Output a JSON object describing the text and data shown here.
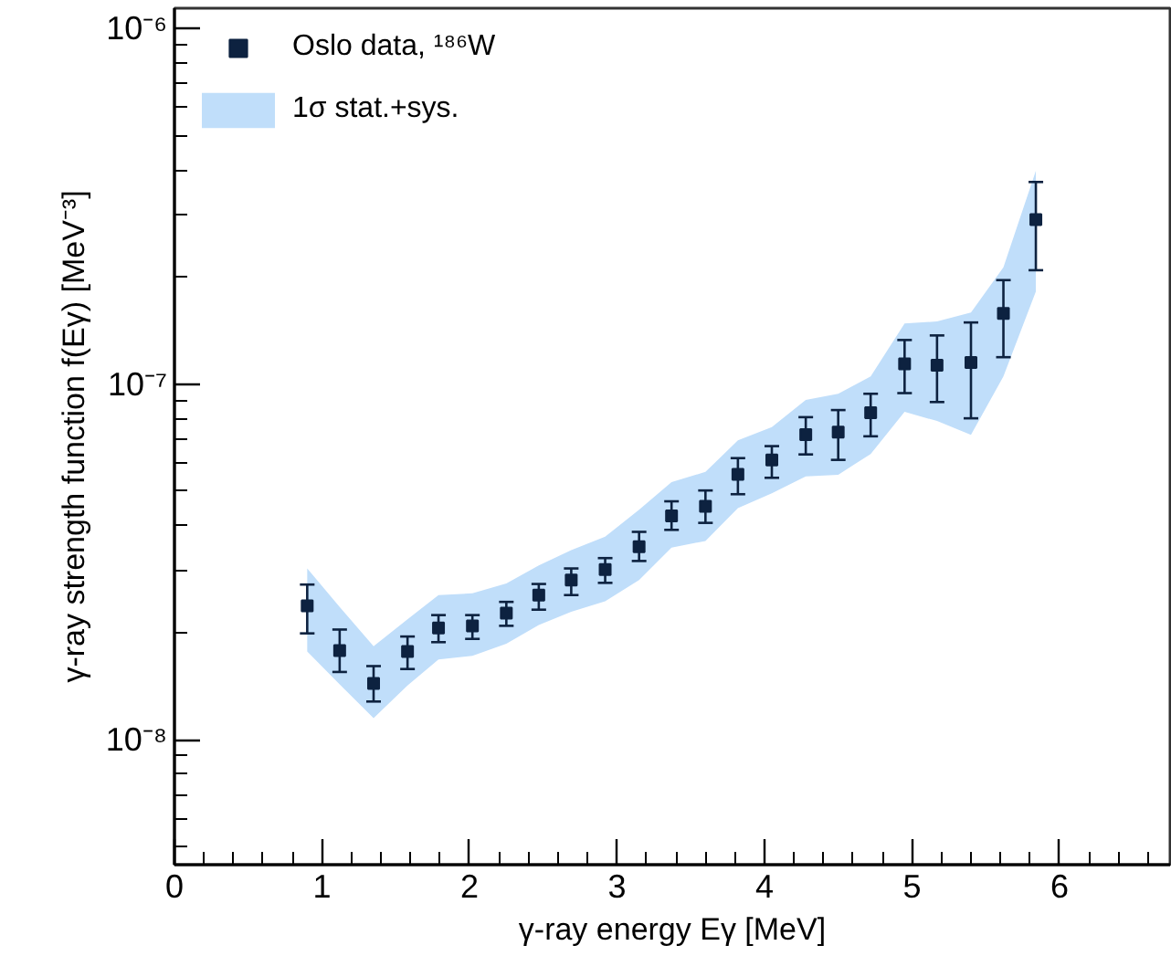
{
  "chart_data": {
    "type": "scatter",
    "xlabel": "γ-ray energy Eγ [MeV]",
    "ylabel": "γ-ray strength function f(Eγ) [MeV⁻³]",
    "log": "y",
    "xlim": [
      0,
      6.75
    ],
    "ylim": [
      4.45e-09,
      1.14e-06
    ],
    "xticks": [
      0,
      1,
      2,
      3,
      4,
      5,
      6
    ],
    "yticks": [
      {
        "value": 1e-08,
        "label": "10⁻⁸"
      },
      {
        "value": 1e-07,
        "label": "10⁻⁷"
      },
      {
        "value": 1e-06,
        "label": "10⁻⁶"
      }
    ],
    "grid": false,
    "legend": "top left",
    "marker": "square",
    "x": [
      0.9,
      1.12,
      1.35,
      1.58,
      1.79,
      2.02,
      2.25,
      2.47,
      2.69,
      2.92,
      3.15,
      3.37,
      3.6,
      3.82,
      4.05,
      4.28,
      4.5,
      4.72,
      4.95,
      5.17,
      5.4,
      5.62,
      5.84
    ],
    "series": [
      {
        "name": "1σ stat.+sys.",
        "type": "line",
        "color": "#c0defa",
        "marker": "none",
        "values": [
          null,
          null,
          null,
          null,
          null,
          null,
          null,
          null,
          null,
          null,
          null,
          null,
          null,
          null,
          null,
          null,
          null,
          null,
          null,
          null,
          null,
          null,
          null
        ],
        "lower": [
          1.77e-08,
          1.43e-08,
          1.15e-08,
          1.42e-08,
          1.68e-08,
          1.72e-08,
          1.86e-08,
          2.1e-08,
          2.29e-08,
          2.45e-08,
          2.81e-08,
          3.47e-08,
          3.62e-08,
          4.48e-08,
          4.93e-08,
          5.5e-08,
          5.56e-08,
          6.36e-08,
          8.35e-08,
          7.87e-08,
          7.2e-08,
          1.05e-07,
          1.82e-07
        ],
        "upper": [
          3.03e-08,
          2.36e-08,
          1.83e-08,
          2.18e-08,
          2.55e-08,
          2.58e-08,
          2.75e-08,
          3.09e-08,
          3.41e-08,
          3.72e-08,
          4.43e-08,
          5.3e-08,
          5.66e-08,
          6.95e-08,
          7.57e-08,
          9.02e-08,
          9.39e-08,
          1.05e-07,
          1.48e-07,
          1.5e-07,
          1.59e-07,
          2.13e-07,
          3.98e-07
        ]
      },
      {
        "name": "Oslo data, ¹⁸⁶W",
        "color": "#0d2240",
        "values": [
          2.38e-08,
          1.78e-08,
          1.44e-08,
          1.77e-08,
          2.06e-08,
          2.09e-08,
          2.27e-08,
          2.55e-08,
          2.81e-08,
          3.01e-08,
          3.49e-08,
          4.26e-08,
          4.53e-08,
          5.57e-08,
          6.12e-08,
          7.21e-08,
          7.32e-08,
          8.3e-08,
          1.14e-07,
          1.13e-07,
          1.15e-07,
          1.58e-07,
          2.9e-07
        ],
        "errors": [
          [
            1.99e-08,
            2.73e-08
          ],
          [
            1.55e-08,
            2.04e-08
          ],
          [
            1.28e-08,
            1.61e-08
          ],
          [
            1.58e-08,
            1.95e-08
          ],
          [
            1.88e-08,
            2.24e-08
          ],
          [
            1.92e-08,
            2.24e-08
          ],
          [
            2.09e-08,
            2.44e-08
          ],
          [
            2.32e-08,
            2.74e-08
          ],
          [
            2.55e-08,
            3.03e-08
          ],
          [
            2.76e-08,
            3.24e-08
          ],
          [
            3.18e-08,
            3.84e-08
          ],
          [
            3.89e-08,
            4.68e-08
          ],
          [
            4.07e-08,
            5.02e-08
          ],
          [
            4.9e-08,
            6.19e-08
          ],
          [
            5.45e-08,
            6.69e-08
          ],
          [
            6.34e-08,
            8.07e-08
          ],
          [
            6.12e-08,
            8.45e-08
          ],
          [
            7.13e-08,
            9.39e-08
          ],
          [
            9.43e-08,
            1.33e-07
          ],
          [
            8.9e-08,
            1.37e-07
          ],
          [
            8.01e-08,
            1.49e-07
          ],
          [
            1.19e-07,
            1.96e-07
          ],
          [
            2.09e-07,
            3.7e-07
          ]
        ]
      }
    ]
  }
}
